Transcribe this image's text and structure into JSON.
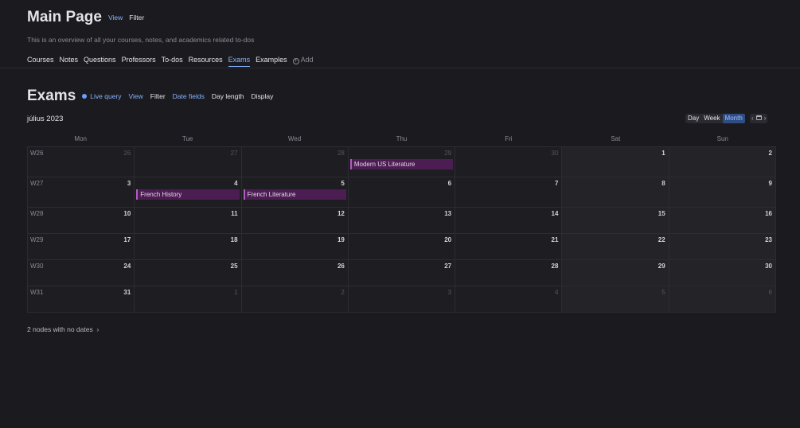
{
  "header": {
    "title": "Main Page",
    "view_label": "View",
    "filter_label": "Filter",
    "subtitle": "This is an overview of all your courses, notes, and academics related to-dos"
  },
  "tabs": [
    {
      "label": "Courses"
    },
    {
      "label": "Notes"
    },
    {
      "label": "Questions"
    },
    {
      "label": "Professors"
    },
    {
      "label": "To-dos"
    },
    {
      "label": "Resources"
    },
    {
      "label": "Exams",
      "active": true
    },
    {
      "label": "Examples"
    }
  ],
  "add_label": "Add",
  "section": {
    "title": "Exams",
    "live_query_label": "Live query",
    "view_label": "View",
    "filter_label": "Filter",
    "date_fields_label": "Date fields",
    "day_length_label": "Day length",
    "display_label": "Display"
  },
  "calendar": {
    "month_label": "július 2023",
    "view_buttons": {
      "day": "Day",
      "week": "Week",
      "month": "Month"
    },
    "active_view": "month",
    "weekdays": [
      "Mon",
      "Tue",
      "Wed",
      "Thu",
      "Fri",
      "Sat",
      "Sun"
    ],
    "weeks": [
      {
        "label": "W26",
        "days": [
          "26",
          "27",
          "28",
          "29",
          "30",
          "1",
          "2"
        ],
        "muted": [
          true,
          true,
          true,
          true,
          true,
          false,
          false
        ],
        "events": [
          {
            "day_index": 3,
            "title": "Modern US Literature"
          }
        ]
      },
      {
        "label": "W27",
        "days": [
          "3",
          "4",
          "5",
          "6",
          "7",
          "8",
          "9"
        ],
        "muted": [
          false,
          false,
          false,
          false,
          false,
          false,
          false
        ],
        "events": [
          {
            "day_index": 1,
            "title": "French History"
          },
          {
            "day_index": 2,
            "title": "French Literature"
          }
        ]
      },
      {
        "label": "W28",
        "days": [
          "10",
          "11",
          "12",
          "13",
          "14",
          "15",
          "16"
        ],
        "muted": [
          false,
          false,
          false,
          false,
          false,
          false,
          false
        ],
        "events": []
      },
      {
        "label": "W29",
        "days": [
          "17",
          "18",
          "19",
          "20",
          "21",
          "22",
          "23"
        ],
        "muted": [
          false,
          false,
          false,
          false,
          false,
          false,
          false
        ],
        "events": []
      },
      {
        "label": "W30",
        "days": [
          "24",
          "25",
          "26",
          "27",
          "28",
          "29",
          "30"
        ],
        "muted": [
          false,
          false,
          false,
          false,
          false,
          false,
          false
        ],
        "events": []
      },
      {
        "label": "W31",
        "days": [
          "31",
          "1",
          "2",
          "3",
          "4",
          "5",
          "6"
        ],
        "muted": [
          false,
          true,
          true,
          true,
          true,
          true,
          true
        ],
        "events": []
      }
    ]
  },
  "no_dates_label": "2 nodes with no dates",
  "colors": {
    "background": "#1b1b1f",
    "accent": "#86b3ff",
    "event_bg": "#4b1d52",
    "event_border": "#b25bc2"
  }
}
